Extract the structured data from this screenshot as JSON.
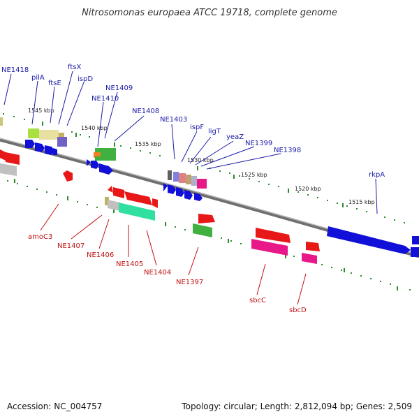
{
  "title": "Nitrosomonas europaea ATCC 19718, complete genome",
  "footer": {
    "accession": "Accession: NC_004757",
    "stats": "Topology: circular; Length: 2,812,094 bp; Genes: 2,509"
  },
  "colors": {
    "forward_label": "#1a1aa8",
    "reverse_label": "#c01010",
    "backbone": "#7a7a7a",
    "tick": "#2d8a2d"
  },
  "kbp_labels": [
    "1545 kbp",
    "1540 kbp",
    "1535 kbp",
    "1530 kbp",
    "1525 kbp",
    "1520 kbp",
    "1515 kbp"
  ],
  "forward_genes": [
    "NE1418",
    "pilA",
    "ftsE",
    "ftsX",
    "ispD",
    "NE1410",
    "NE1409",
    "NE1408",
    "NE1403",
    "ispF",
    "ligT",
    "yeaZ",
    "NE1399",
    "NE1398",
    "rkpA"
  ],
  "reverse_genes": [
    "amoC3",
    "NE1407",
    "NE1406",
    "NE1405",
    "NE1404",
    "NE1397",
    "sbcC",
    "sbcD"
  ]
}
